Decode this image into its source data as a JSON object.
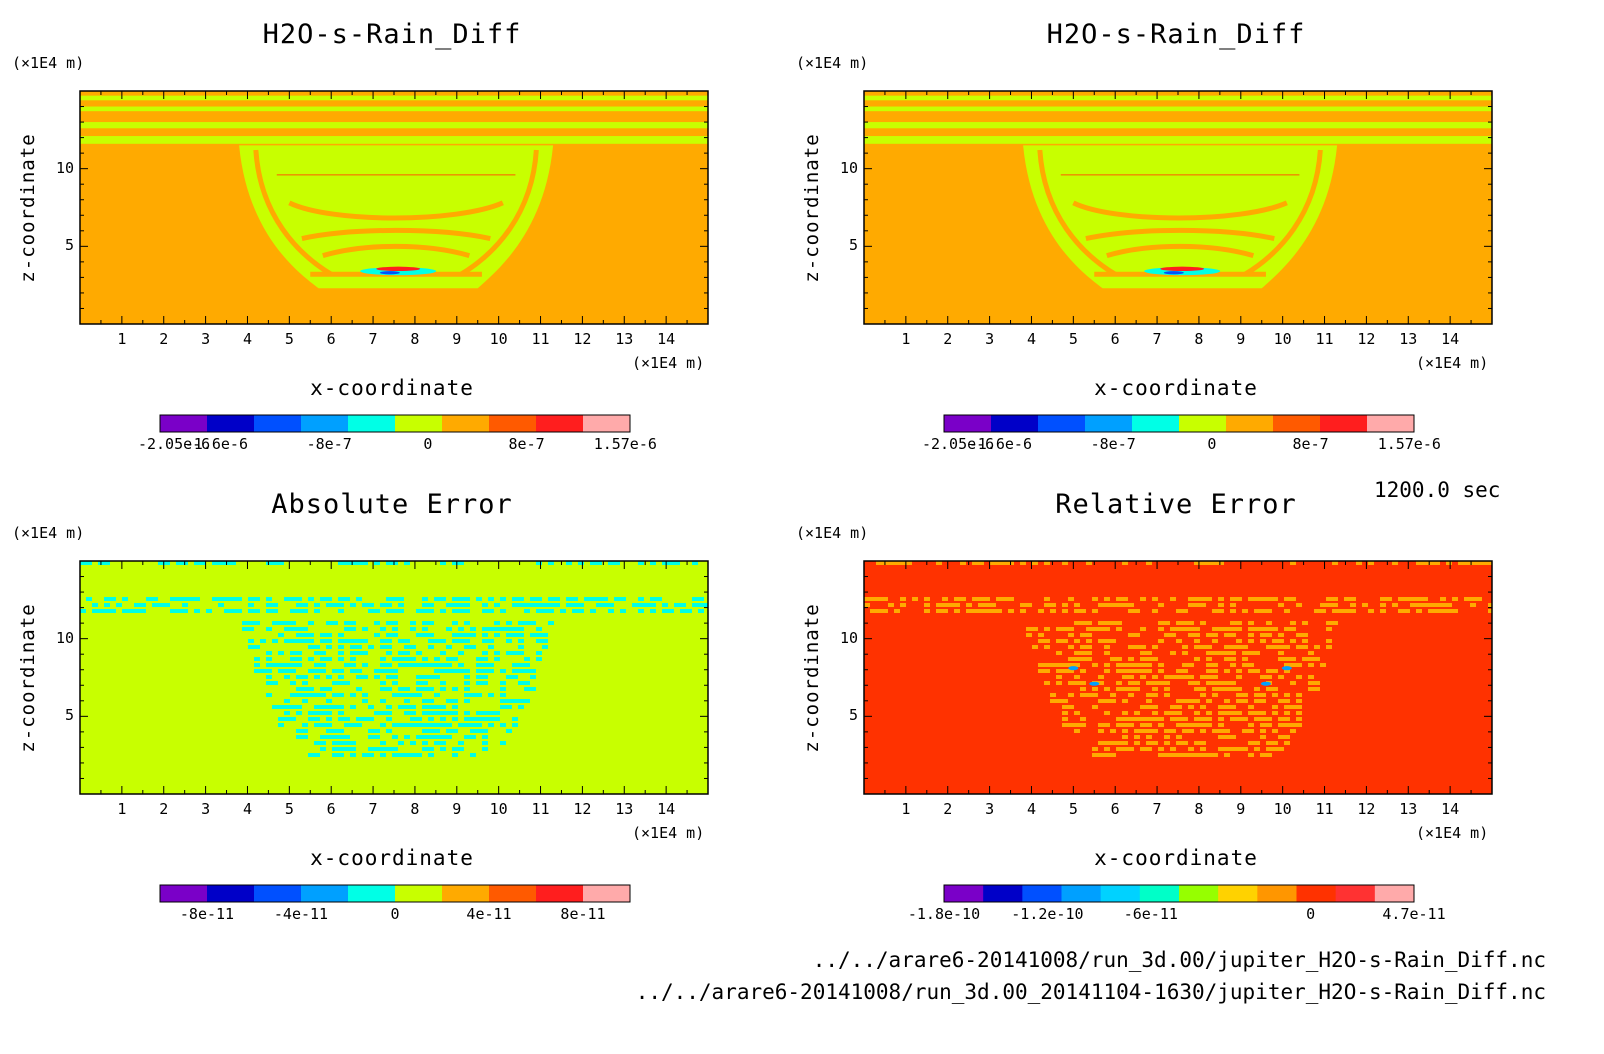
{
  "time_label": "1200.0 sec",
  "footer": {
    "file1": "../../arare6-20141008/run_3d.00/jupiter_H2O-s-Rain_Diff.nc",
    "file2": "../../arare6-20141008/run_3d.00_20141104-1630/jupiter_H2O-s-Rain_Diff.nc"
  },
  "chart_data": [
    {
      "type": "heatmap",
      "title": "H2O-s-Rain_Diff",
      "xlabel": "x-coordinate",
      "ylabel": "z-coordinate",
      "x_unit": "(×1E4 m)",
      "y_unit": "(×1E4 m)",
      "xlim": [
        0,
        15
      ],
      "ylim": [
        0,
        15
      ],
      "x_ticks": [
        "1",
        "2",
        "3",
        "4",
        "5",
        "6",
        "7",
        "8",
        "9",
        "10",
        "11",
        "12",
        "13",
        "14"
      ],
      "y_ticks": [
        "5",
        "10"
      ],
      "pattern": "rain",
      "background_color": "#ffaa00",
      "colorbar": {
        "colors": [
          "#7a00c8",
          "#0000c8",
          "#0050ff",
          "#00a0ff",
          "#00ffe6",
          "#c8ff00",
          "#ffaa00",
          "#ff5a00",
          "#ff1e1e",
          "#ffaaaa"
        ],
        "tick_labels": [
          "-2.05e-6",
          "-1.6e-6",
          "-8e-7",
          "0",
          "8e-7",
          "1.57e-6"
        ]
      }
    },
    {
      "type": "heatmap",
      "title": "H2O-s-Rain_Diff",
      "xlabel": "x-coordinate",
      "ylabel": "z-coordinate",
      "x_unit": "(×1E4 m)",
      "y_unit": "(×1E4 m)",
      "xlim": [
        0,
        15
      ],
      "ylim": [
        0,
        15
      ],
      "x_ticks": [
        "1",
        "2",
        "3",
        "4",
        "5",
        "6",
        "7",
        "8",
        "9",
        "10",
        "11",
        "12",
        "13",
        "14"
      ],
      "y_ticks": [
        "5",
        "10"
      ],
      "pattern": "rain",
      "background_color": "#ffaa00",
      "colorbar": {
        "colors": [
          "#7a00c8",
          "#0000c8",
          "#0050ff",
          "#00a0ff",
          "#00ffe6",
          "#c8ff00",
          "#ffaa00",
          "#ff5a00",
          "#ff1e1e",
          "#ffaaaa"
        ],
        "tick_labels": [
          "-2.05e-6",
          "-1.6e-6",
          "-8e-7",
          "0",
          "8e-7",
          "1.57e-6"
        ]
      }
    },
    {
      "type": "heatmap",
      "title": "Absolute Error",
      "xlabel": "x-coordinate",
      "ylabel": "z-coordinate",
      "x_unit": "(×1E4 m)",
      "y_unit": "(×1E4 m)",
      "xlim": [
        0,
        15
      ],
      "ylim": [
        0,
        15
      ],
      "x_ticks": [
        "1",
        "2",
        "3",
        "4",
        "5",
        "6",
        "7",
        "8",
        "9",
        "10",
        "11",
        "12",
        "13",
        "14"
      ],
      "y_ticks": [
        "5",
        "10"
      ],
      "pattern": "noise_abs",
      "background_color": "#c8ff00",
      "colorbar": {
        "colors": [
          "#7a00c8",
          "#0000c8",
          "#0050ff",
          "#00a0ff",
          "#00ffe6",
          "#c8ff00",
          "#ffaa00",
          "#ff5a00",
          "#ff1e1e",
          "#ffaaaa"
        ],
        "tick_labels": [
          "-8e-11",
          "-4e-11",
          "0",
          "4e-11",
          "8e-11"
        ]
      }
    },
    {
      "type": "heatmap",
      "title": "Relative Error",
      "xlabel": "x-coordinate",
      "ylabel": "z-coordinate",
      "x_unit": "(×1E4 m)",
      "y_unit": "(×1E4 m)",
      "xlim": [
        0,
        15
      ],
      "ylim": [
        0,
        15
      ],
      "x_ticks": [
        "1",
        "2",
        "3",
        "4",
        "5",
        "6",
        "7",
        "8",
        "9",
        "10",
        "11",
        "12",
        "13",
        "14"
      ],
      "y_ticks": [
        "5",
        "10"
      ],
      "pattern": "noise_rel",
      "background_color": "#ff3200",
      "colorbar": {
        "colors": [
          "#7a00c8",
          "#0000c8",
          "#0050ff",
          "#00a0ff",
          "#00d2ff",
          "#00ffc8",
          "#96ff00",
          "#ffd200",
          "#ff9600",
          "#ff3200",
          "#ff3232",
          "#ffaaaa"
        ],
        "tick_labels": [
          "-1.8e-10",
          "-1.2e-10",
          "-6e-11",
          "0",
          "4.7e-11"
        ]
      }
    }
  ]
}
